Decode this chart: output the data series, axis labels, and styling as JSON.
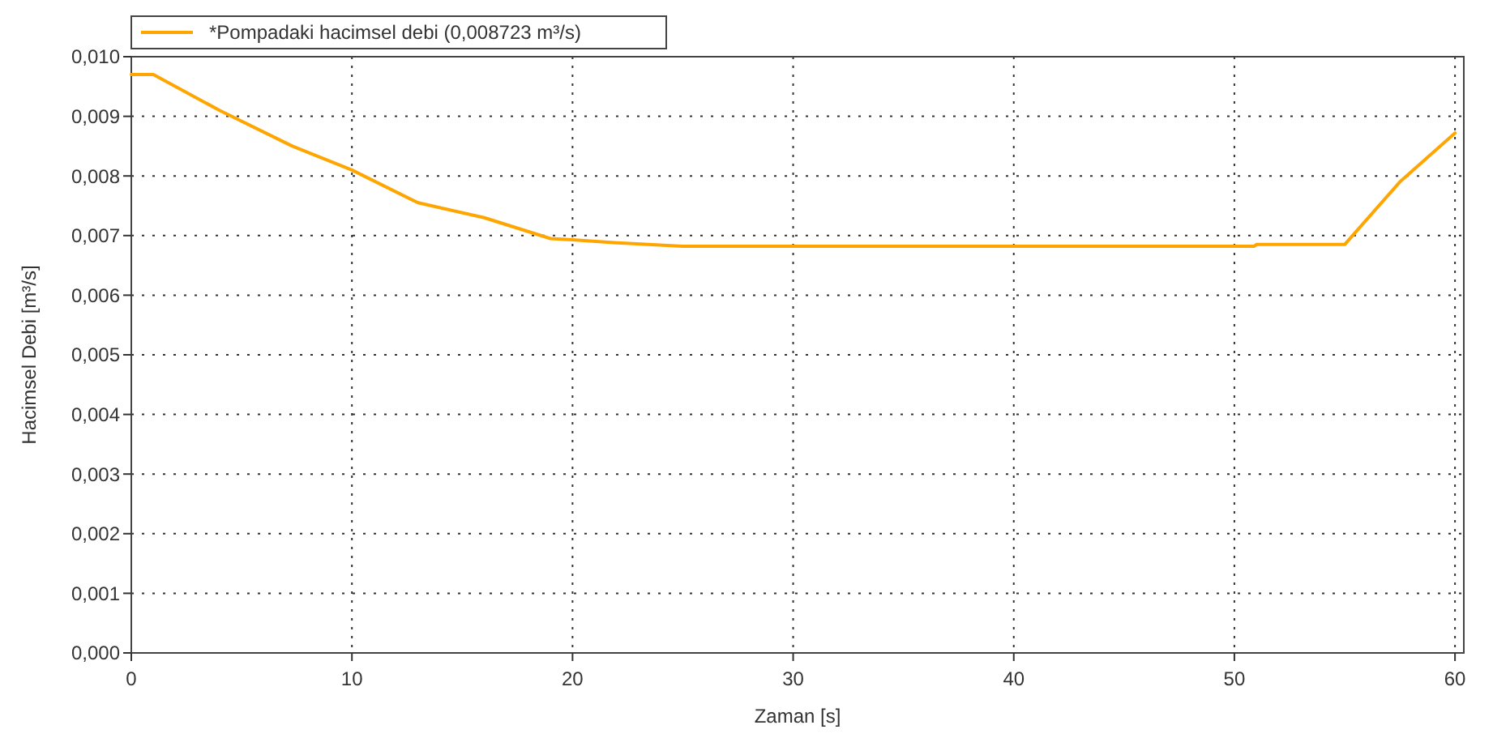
{
  "chart_data": {
    "type": "line",
    "xlabel": "Zaman [s]",
    "ylabel": "Hacimsel Debi [m³/s]",
    "xlim": [
      0,
      60.4
    ],
    "xticks": [
      0,
      10,
      20,
      30,
      40,
      50,
      60
    ],
    "ylim": [
      0,
      0.01
    ],
    "yticks": [
      {
        "value": 0,
        "label": "0,000"
      },
      {
        "value": 0.001,
        "label": "0,001"
      },
      {
        "value": 0.002,
        "label": "0,002"
      },
      {
        "value": 0.003,
        "label": "0,003"
      },
      {
        "value": 0.004,
        "label": "0,004"
      },
      {
        "value": 0.005,
        "label": "0,005"
      },
      {
        "value": 0.006,
        "label": "0,006"
      },
      {
        "value": 0.007,
        "label": "0,007"
      },
      {
        "value": 0.008,
        "label": "0,008"
      },
      {
        "value": 0.009,
        "label": "0,009"
      },
      {
        "value": 0.01,
        "label": "0,010"
      }
    ],
    "grid": true,
    "legend": "top left",
    "line_style": "solid",
    "marker": "none",
    "series": [
      {
        "name": "*Pompadaki hacimsel debi (0,008723 m³/s)",
        "color": "#ffa500",
        "x": [
          0,
          1,
          4,
          7.3,
          10,
          13,
          16,
          19,
          20,
          22,
          25,
          50.9,
          51,
          55,
          57.5,
          60
        ],
        "values": [
          0.0097,
          0.0097,
          0.0091,
          0.0085,
          0.0081,
          0.00755,
          0.0073,
          0.00695,
          0.00693,
          0.00688,
          0.00682,
          0.00682,
          0.00685,
          0.00685,
          0.0079,
          0.00872
        ]
      }
    ]
  }
}
